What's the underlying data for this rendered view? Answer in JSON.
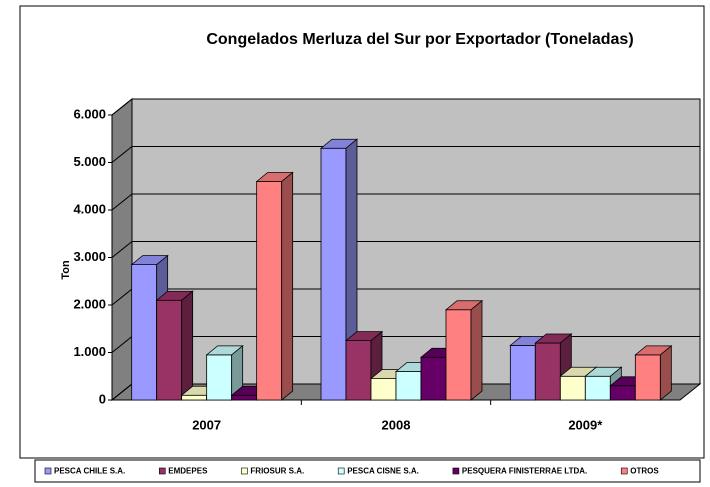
{
  "chart_data": {
    "type": "bar3d",
    "title": "Congelados Merluza del Sur por Exportador (Toneladas)",
    "y_label": "Ton",
    "categories": [
      "2007",
      "2008",
      "2009*"
    ],
    "series": [
      {
        "name": "PESCA CHILE S.A.",
        "color": "#9999ff",
        "values": [
          2850,
          5300,
          1150
        ]
      },
      {
        "name": "EMDEPES",
        "color": "#993366",
        "values": [
          2100,
          1250,
          1200
        ]
      },
      {
        "name": "FRIOSUR S.A.",
        "color": "#ffffcc",
        "values": [
          100,
          450,
          500
        ]
      },
      {
        "name": "PESCA CISNE S.A.",
        "color": "#ccffff",
        "values": [
          950,
          600,
          500
        ]
      },
      {
        "name": "PESQUERA FINISTERRAE LTDA.",
        "color": "#660066",
        "values": [
          100,
          900,
          300
        ]
      },
      {
        "name": "OTROS",
        "color": "#ff8080",
        "values": [
          4600,
          1900,
          950
        ]
      }
    ],
    "ylim": [
      0,
      6000
    ],
    "yticks": [
      0,
      {
        "value": 1000,
        "label": "1.000"
      },
      {
        "value": 2000,
        "label": "2.000"
      },
      {
        "value": 3000,
        "label": "3.000"
      },
      {
        "value": 4000,
        "label": "4.000"
      },
      {
        "value": 5000,
        "label": "5.000"
      },
      {
        "value": 6000,
        "label": "6.000"
      }
    ],
    "grid": true
  }
}
